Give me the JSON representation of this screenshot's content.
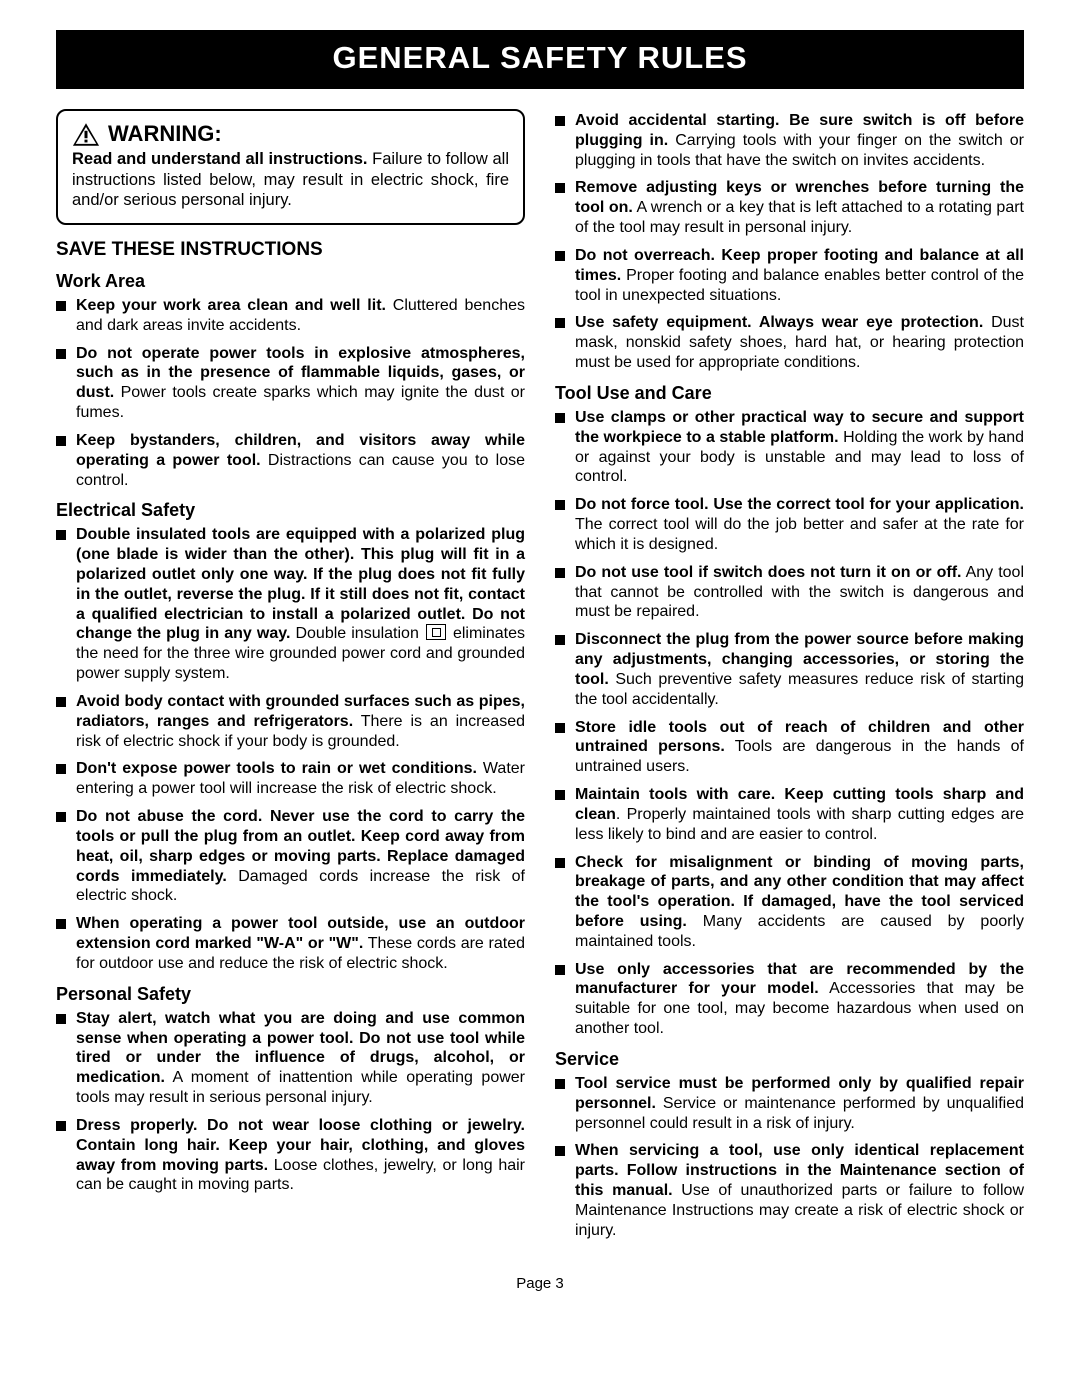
{
  "banner": "GENERAL SAFETY RULES",
  "warning": {
    "title": "WARNING:",
    "text_bold": "Read and understand all instructions.",
    "text_rest": " Failure to follow all instructions listed below, may result in electric shock, fire and/or serious personal injury."
  },
  "save_title": "SAVE THESE INSTRUCTIONS",
  "sections": {
    "work_area": {
      "title": "Work Area",
      "items": [
        {
          "b": "Keep your work area clean and well lit.",
          "r": " Cluttered benches and dark areas invite accidents."
        },
        {
          "b": "Do not operate power tools in explosive atmospheres, such as in the presence of flammable liquids, gases, or dust.",
          "r": " Power tools create sparks which may ignite the dust or fumes."
        },
        {
          "b": "Keep bystanders, children, and visitors away while operating a power tool.",
          "r": " Distractions can cause you to lose control."
        }
      ]
    },
    "electrical": {
      "title": "Electrical Safety",
      "items": [
        {
          "b": "Double insulated tools are equipped with a polarized plug (one blade is wider than the other). This plug will fit in a polarized outlet only one way. If the plug does not fit fully in the outlet, reverse the plug. If it still does not fit, contact a qualified electrician to install a polarized outlet. Do not change the plug in any way.",
          "r_pre": " Double insulation ",
          "r_post": " eliminates the need for the three wire grounded power cord and grounded power supply system.",
          "symbol": true
        },
        {
          "b": "Avoid body contact with grounded surfaces such as pipes, radiators, ranges and refrigerators.",
          "r": " There is an increased risk of electric shock if your body is grounded."
        },
        {
          "b": "Don't expose power tools to rain or wet conditions.",
          "r": " Water entering a power tool will increase the risk of electric shock."
        },
        {
          "b": "Do not abuse the cord. Never use the cord to carry the tools or pull the plug from an outlet. Keep cord away from heat, oil, sharp edges or moving parts. Replace damaged cords immediately.",
          "r": " Damaged cords increase the risk of electric shock."
        },
        {
          "b": "When operating a power tool outside, use an outdoor extension cord marked \"W-A\" or \"W\".",
          "r": " These cords are rated for outdoor use and reduce the risk of electric shock."
        }
      ]
    },
    "personal": {
      "title": "Personal Safety",
      "items": [
        {
          "b": "Stay alert, watch what you are doing and use common sense when operating a power tool. Do not use tool while tired or under the influence of drugs, alcohol, or medication.",
          "r": " A moment of inattention while operating power tools may result in serious personal injury."
        },
        {
          "b": "Dress properly. Do not wear loose clothing or jewelry. Contain long hair. Keep your hair, clothing, and gloves away from moving parts.",
          "r": " Loose clothes, jewelry, or long hair can be caught in moving parts."
        }
      ]
    },
    "personal2": {
      "items": [
        {
          "b": "Avoid accidental starting. Be sure switch is off before plugging in.",
          "r": " Carrying tools with your finger on the switch or plugging in tools that have the switch on invites accidents."
        },
        {
          "b": "Remove adjusting keys or wrenches before turning the tool on.",
          "r": " A wrench or a key that is left attached to a rotating part of the tool may result in personal injury."
        },
        {
          "b": "Do not overreach. Keep proper footing and balance at all times.",
          "r": " Proper footing and balance enables better control of the tool in unexpected situations."
        },
        {
          "b": "Use safety equipment. Always wear eye protection.",
          "r": " Dust mask, nonskid safety shoes, hard hat, or hearing protection must be used for appropriate conditions."
        }
      ]
    },
    "tool_use": {
      "title": "Tool Use and Care",
      "items": [
        {
          "b": "Use clamps or other practical way to secure and support the workpiece to a stable platform.",
          "r": " Holding the work by hand or against your body is unstable and may lead to loss of control."
        },
        {
          "b": "Do not force tool. Use the correct tool for your application.",
          "r": " The correct tool will do the job better and safer at the rate for which it is designed."
        },
        {
          "b": "Do not use tool if switch does not turn it on or off.",
          "r": " Any tool that cannot be controlled with the switch is dangerous and must be repaired."
        },
        {
          "b": "Disconnect the plug from the power source before making any adjustments, changing accessories, or storing the tool.",
          "r": " Such preventive safety measures reduce risk of starting the tool accidentally."
        },
        {
          "b": "Store idle tools out of reach of children and other untrained persons.",
          "r": " Tools are dangerous in the hands of untrained users."
        },
        {
          "b": "Maintain tools with care. Keep cutting tools sharp and clean",
          "r": ". Properly maintained tools with sharp cutting edges are less likely to bind and are easier to control."
        },
        {
          "b": "Check for misalignment or binding of moving parts, breakage of parts, and any other condition that may affect the tool's operation. If damaged, have the tool serviced before using.",
          "r": " Many accidents are caused by poorly maintained tools."
        },
        {
          "b": "Use only accessories that are recommended by the manufacturer for your model.",
          "r": " Accessories that may be suitable for one tool, may become hazardous when used on another tool."
        }
      ]
    },
    "service": {
      "title": "Service",
      "items": [
        {
          "b": "Tool service must be performed only by qualified repair personnel.",
          "r": " Service or maintenance performed by unqualified personnel could result in a risk of injury."
        },
        {
          "b": "When servicing a tool, use only identical replacement parts. Follow instructions in the Maintenance section of this manual.",
          "r": " Use of unauthorized parts or failure to follow Maintenance Instructions may create a risk of electric shock or injury."
        }
      ]
    }
  },
  "page_number": "Page 3"
}
